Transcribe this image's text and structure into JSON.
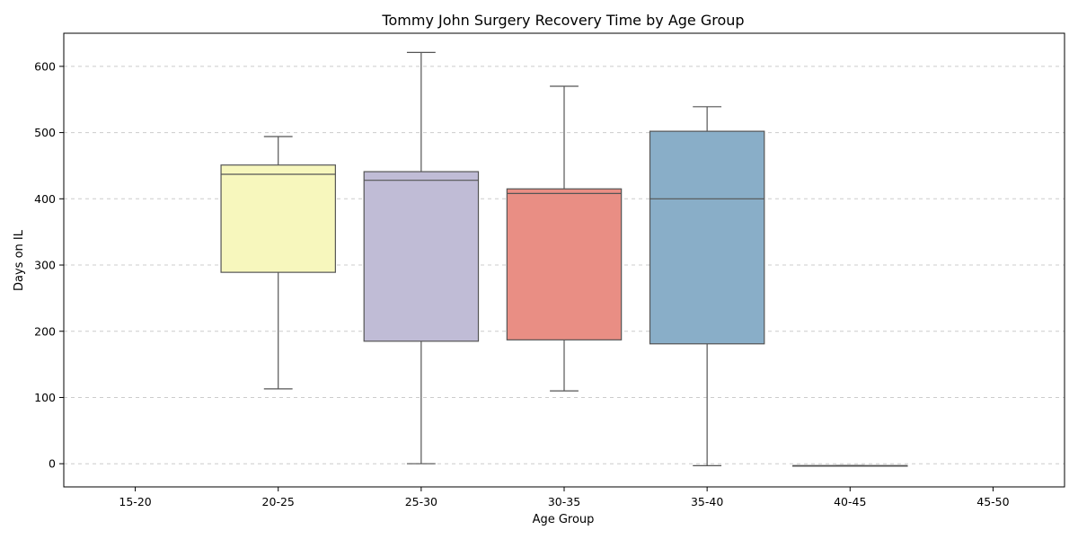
{
  "chart_data": {
    "type": "box",
    "title": "Tommy John Surgery Recovery Time by Age Group",
    "xlabel": "Age Group",
    "ylabel": "Days on IL",
    "ylim": [
      -35,
      650
    ],
    "yticks": [
      0,
      100,
      200,
      300,
      400,
      500,
      600
    ],
    "grid": true,
    "categories": [
      "15-20",
      "20-25",
      "25-30",
      "30-35",
      "35-40",
      "40-45",
      "45-50"
    ],
    "boxes": [
      null,
      {
        "min": 113,
        "q1": 289,
        "median": 437,
        "q3": 451,
        "max": 494,
        "color": "#f7f7bd"
      },
      {
        "min": 0,
        "q1": 185,
        "median": 428,
        "q3": 441,
        "max": 621,
        "color": "#c0bcd6"
      },
      {
        "min": 110,
        "q1": 187,
        "median": 408,
        "q3": 415,
        "max": 570,
        "color": "#e98e84"
      },
      {
        "min": -3,
        "q1": 181,
        "median": 400,
        "q3": 502,
        "max": 539,
        "color": "#89aec8"
      },
      {
        "min": -3,
        "q1": -3,
        "median": -3,
        "q3": -3,
        "max": -3,
        "color": "#bde3b6"
      },
      null
    ]
  }
}
